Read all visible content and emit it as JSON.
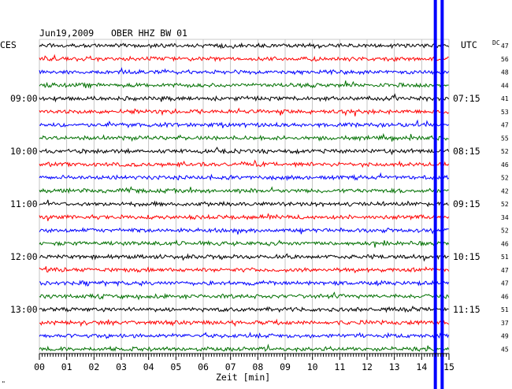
{
  "header": {
    "date": "Jun19,2009",
    "station": "OBER HHZ BW 01",
    "left_timezone": "CES",
    "right_timezone": "UTC",
    "dc_label": "DC"
  },
  "footer": {
    "xlabel": "Zeit [min]",
    "corner_mark": "\""
  },
  "chart_data": {
    "type": "line",
    "title": "",
    "xlabel": "Zeit [min]",
    "xlim": [
      0,
      15
    ],
    "x_ticks": [
      "00",
      "01",
      "02",
      "03",
      "04",
      "05",
      "06",
      "07",
      "08",
      "09",
      "10",
      "11",
      "12",
      "13",
      "14",
      "15"
    ],
    "trace_count": 24,
    "trace_colors": [
      "#000000",
      "#ff0000",
      "#0000ff",
      "#007000"
    ],
    "left_time_labels": [
      {
        "trace": 4,
        "label": "09:00"
      },
      {
        "trace": 8,
        "label": "10:00"
      },
      {
        "trace": 12,
        "label": "11:00"
      },
      {
        "trace": 16,
        "label": "12:00"
      },
      {
        "trace": 20,
        "label": "13:00"
      }
    ],
    "right_time_labels": [
      {
        "trace": 4,
        "label": "07:15"
      },
      {
        "trace": 8,
        "label": "08:15"
      },
      {
        "trace": 12,
        "label": "09:15"
      },
      {
        "trace": 16,
        "label": "10:15"
      },
      {
        "trace": 20,
        "label": "11:15"
      }
    ],
    "dc_values": [
      47,
      56,
      48,
      44,
      41,
      53,
      47,
      55,
      52,
      46,
      52,
      42,
      52,
      34,
      52,
      46,
      51,
      47,
      47,
      46,
      51,
      37,
      49,
      45
    ],
    "grid": true,
    "vertical_markers_min": [
      14.5,
      14.75
    ],
    "marker_color": "#0000ff"
  }
}
